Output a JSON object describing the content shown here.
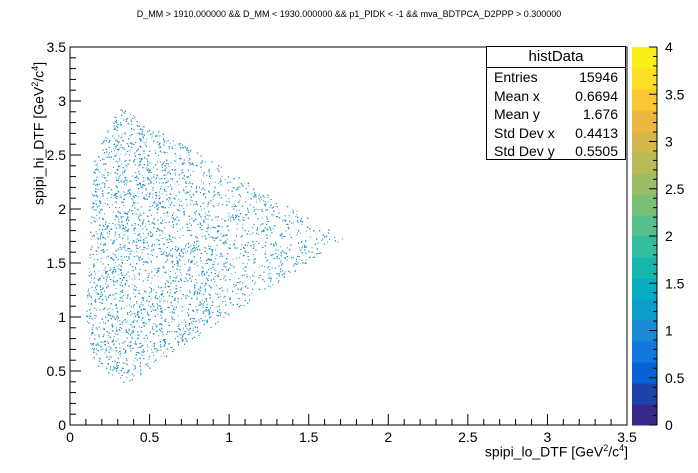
{
  "chart_data": {
    "type": "scatter",
    "title": "D_MM > 1910.000000 && D_MM < 1930.000000 && p1_PIDK < -1 && mva_BDTPCA_D2PPP > 0.300000",
    "xlabel": "spipi_lo_DTF [GeV²/c⁴]",
    "ylabel": "spipi_hi_DTF [GeV²/c⁴]",
    "xlabel_main": "spipi_lo_DTF [GeV",
    "xlabel_mid": "/c",
    "xlabel_end": "]",
    "ylabel_main": "spipi_hi_DTF [GeV",
    "ylabel_mid": "/c",
    "ylabel_end": "]",
    "sup2": "2",
    "sup4": "4",
    "xlim": [
      0,
      3.5
    ],
    "ylim": [
      0,
      3.5
    ],
    "xticks": [
      "0",
      "0.5",
      "1",
      "1.5",
      "2",
      "2.5",
      "3",
      "3.5"
    ],
    "yticks": [
      "0",
      "0.5",
      "1",
      "1.5",
      "2",
      "2.5",
      "3",
      "3.5"
    ],
    "region": {
      "description_vertices": [
        [
          0.1,
          1.0
        ],
        [
          0.15,
          2.5
        ],
        [
          0.3,
          2.95
        ],
        [
          1.72,
          1.73
        ],
        [
          0.35,
          0.38
        ],
        [
          0.15,
          0.55
        ]
      ]
    },
    "point_color": "#1d93c9",
    "colorbar": {
      "min": 0,
      "max": 4,
      "ticks": [
        "0",
        "0.5",
        "1",
        "1.5",
        "2",
        "2.5",
        "3",
        "3.5",
        "4"
      ],
      "colors": [
        "#352a87",
        "#1c44a8",
        "#0563d6",
        "#1278e0",
        "#1a8ad5",
        "#0d9fcc",
        "#06aec2",
        "#19b6b0",
        "#34bea0",
        "#56c08c",
        "#7bbf77",
        "#9dbd65",
        "#bbbb56",
        "#d6b84a",
        "#ecb83f",
        "#fbc833",
        "#fadf26",
        "#f8f016"
      ]
    },
    "stats": {
      "title": "histData",
      "rows": [
        {
          "label": "Entries",
          "value": "15946"
        },
        {
          "label": "Mean x",
          "value": "0.6694"
        },
        {
          "label": "Mean y",
          "value": "1.676"
        },
        {
          "label": "Std Dev x",
          "value": "0.4413"
        },
        {
          "label": "Std Dev y",
          "value": "0.5505"
        }
      ]
    }
  }
}
